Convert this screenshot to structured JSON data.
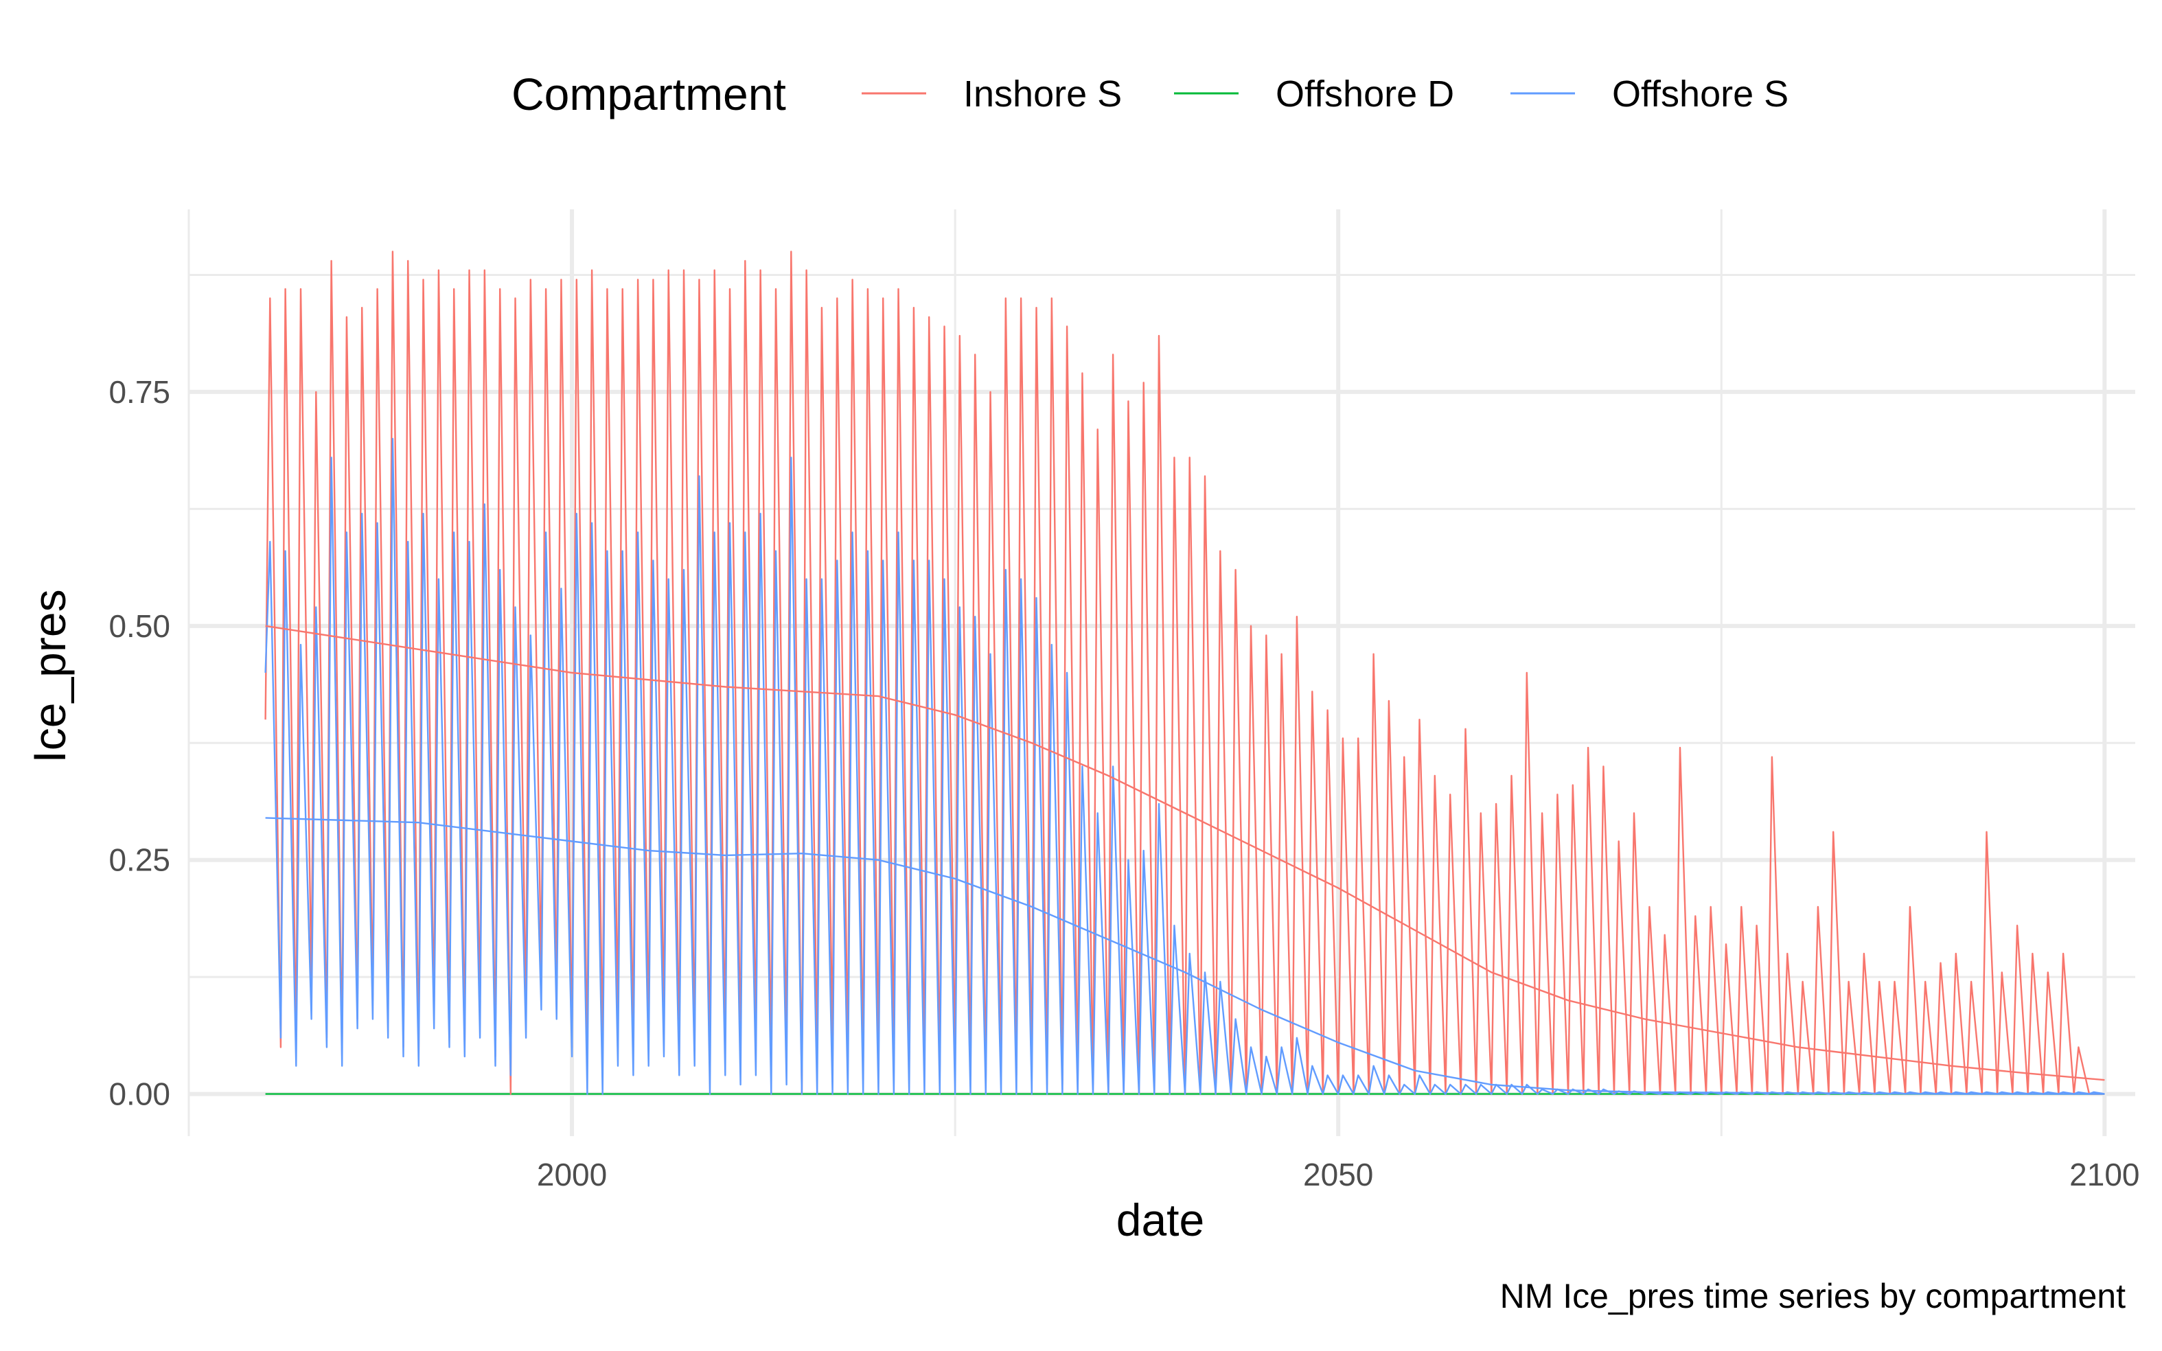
{
  "chart_data": {
    "type": "line",
    "title": "",
    "caption": "NM Ice_pres time series by compartment",
    "xlabel": "date",
    "ylabel": "Ice_pres",
    "xlim": [
      1975,
      2102
    ],
    "ylim": [
      -0.045,
      0.945
    ],
    "x_ticks": [
      2000,
      2050,
      2100
    ],
    "x_minor_ticks": [
      1975,
      2025,
      2075
    ],
    "y_ticks": [
      0.0,
      0.25,
      0.5,
      0.75
    ],
    "y_tick_labels": [
      "0.00",
      "0.25",
      "0.50",
      "0.75"
    ],
    "y_minor_ticks": [
      0.125,
      0.375,
      0.625,
      0.875
    ],
    "grid": true,
    "legend": {
      "title": "Compartment",
      "position": "top",
      "entries": [
        "Inshore S",
        "Offshore D",
        "Offshore S"
      ]
    },
    "x_start": 1980,
    "x_end": 2100,
    "series": [
      {
        "name": "Inshore S",
        "color": "#F8766D",
        "kind": "seasonal",
        "annual_peaks": [
          0.85,
          0.86,
          0.86,
          0.75,
          0.89,
          0.83,
          0.84,
          0.86,
          0.9,
          0.89,
          0.87,
          0.88,
          0.86,
          0.88,
          0.88,
          0.86,
          0.85,
          0.87,
          0.86,
          0.87,
          0.87,
          0.88,
          0.86,
          0.86,
          0.87,
          0.87,
          0.88,
          0.88,
          0.87,
          0.88,
          0.86,
          0.89,
          0.88,
          0.86,
          0.9,
          0.88,
          0.84,
          0.85,
          0.87,
          0.86,
          0.85,
          0.86,
          0.84,
          0.83,
          0.82,
          0.81,
          0.79,
          0.75,
          0.85,
          0.85,
          0.84,
          0.85,
          0.82,
          0.77,
          0.71,
          0.79,
          0.74,
          0.76,
          0.81,
          0.68,
          0.68,
          0.66,
          0.58,
          0.56,
          0.5,
          0.49,
          0.47,
          0.51,
          0.43,
          0.41,
          0.38,
          0.38,
          0.47,
          0.42,
          0.36,
          0.4,
          0.34,
          0.32,
          0.39,
          0.3,
          0.31,
          0.34,
          0.45,
          0.3,
          0.32,
          0.33,
          0.37,
          0.35,
          0.27,
          0.3,
          0.2,
          0.17,
          0.37,
          0.19,
          0.2,
          0.16,
          0.2,
          0.18,
          0.36,
          0.15,
          0.12,
          0.2,
          0.28,
          0.12,
          0.15,
          0.12,
          0.12,
          0.2,
          0.12,
          0.14,
          0.15,
          0.12,
          0.28,
          0.13,
          0.18,
          0.15,
          0.13,
          0.15,
          0.05,
          0.0
        ],
        "annual_troughs": [
          0.4,
          0.05,
          0.05,
          0.12,
          0.06,
          0.04,
          0.08,
          0.1,
          0.08,
          0.05,
          0.04,
          0.08,
          0.06,
          0.05,
          0.08,
          0.04,
          0.0,
          0.08,
          0.12,
          0.1,
          0.05,
          0.03,
          0.04,
          0.08,
          0.05,
          0.06,
          0.07,
          0.04,
          0.05,
          0.03,
          0.05,
          0.04,
          0.05,
          0.03,
          0.04,
          0.0,
          0.03,
          0.05,
          0.04,
          0.03,
          0.04,
          0.05,
          0.02,
          0.03,
          0.02,
          0.03,
          0.02,
          0.01,
          0.02,
          0.02,
          0.02,
          0.01,
          0.01,
          0.01,
          0.01,
          0.0,
          0.0,
          0.0,
          0.0,
          0.0,
          0.0,
          0.0,
          0.0,
          0.0,
          0.0,
          0.0,
          0.0,
          0.0,
          0.0,
          0.0,
          0.0,
          0.0,
          0.0,
          0.0,
          0.0,
          0.0,
          0.0,
          0.0,
          0.0,
          0.0,
          0.0,
          0.0,
          0.0,
          0.0,
          0.0,
          0.0,
          0.0,
          0.0,
          0.0,
          0.0,
          0.0,
          0.0,
          0.0,
          0.0,
          0.0,
          0.0,
          0.0,
          0.0,
          0.0,
          0.0,
          0.0,
          0.0,
          0.0,
          0.0,
          0.0,
          0.0,
          0.0,
          0.0,
          0.0,
          0.0,
          0.0,
          0.0,
          0.0,
          0.0,
          0.0,
          0.0,
          0.0,
          0.0,
          0.0,
          0.0
        ]
      },
      {
        "name": "Offshore D",
        "color": "#00BA38",
        "kind": "flat",
        "value": 0.0
      },
      {
        "name": "Offshore S",
        "color": "#619CFF",
        "kind": "seasonal",
        "annual_peaks": [
          0.59,
          0.58,
          0.48,
          0.52,
          0.68,
          0.6,
          0.62,
          0.61,
          0.7,
          0.59,
          0.62,
          0.55,
          0.6,
          0.59,
          0.63,
          0.56,
          0.52,
          0.49,
          0.6,
          0.54,
          0.62,
          0.61,
          0.58,
          0.58,
          0.6,
          0.57,
          0.55,
          0.56,
          0.66,
          0.6,
          0.61,
          0.6,
          0.62,
          0.58,
          0.68,
          0.55,
          0.55,
          0.57,
          0.6,
          0.58,
          0.57,
          0.6,
          0.57,
          0.57,
          0.55,
          0.52,
          0.51,
          0.47,
          0.56,
          0.55,
          0.53,
          0.48,
          0.45,
          0.35,
          0.3,
          0.35,
          0.25,
          0.26,
          0.31,
          0.18,
          0.15,
          0.13,
          0.12,
          0.08,
          0.05,
          0.04,
          0.05,
          0.06,
          0.03,
          0.02,
          0.02,
          0.02,
          0.03,
          0.02,
          0.01,
          0.02,
          0.01,
          0.01,
          0.01,
          0.01,
          0.01,
          0.01,
          0.01,
          0.005,
          0.005,
          0.005,
          0.005,
          0.005,
          0.003,
          0.003,
          0.002,
          0.002,
          0.002,
          0.002,
          0.002,
          0.002,
          0.002,
          0.002,
          0.002,
          0.002,
          0.002,
          0.002,
          0.002,
          0.002,
          0.002,
          0.002,
          0.002,
          0.002,
          0.002,
          0.002,
          0.002,
          0.002,
          0.002,
          0.002,
          0.002,
          0.002,
          0.002,
          0.002,
          0.002,
          0.002
        ],
        "annual_troughs": [
          0.45,
          0.06,
          0.03,
          0.08,
          0.05,
          0.03,
          0.07,
          0.08,
          0.06,
          0.04,
          0.03,
          0.07,
          0.05,
          0.04,
          0.06,
          0.03,
          0.02,
          0.06,
          0.09,
          0.08,
          0.04,
          0.0,
          0.0,
          0.03,
          0.02,
          0.03,
          0.04,
          0.02,
          0.03,
          0.0,
          0.02,
          0.01,
          0.02,
          0.0,
          0.01,
          0.0,
          0.0,
          0.0,
          0.0,
          0.0,
          0.0,
          0.0,
          0.0,
          0.0,
          0.0,
          0.0,
          0.0,
          0.0,
          0.0,
          0.0,
          0.0,
          0.0,
          0.0,
          0.0,
          0.0,
          0.0,
          0.0,
          0.0,
          0.0,
          0.0,
          0.0,
          0.0,
          0.0,
          0.0,
          0.0,
          0.0,
          0.0,
          0.0,
          0.0,
          0.0,
          0.0,
          0.0,
          0.0,
          0.0,
          0.0,
          0.0,
          0.0,
          0.0,
          0.0,
          0.0,
          0.0,
          0.0,
          0.0,
          0.0,
          0.0,
          0.0,
          0.0,
          0.0,
          0.0,
          0.0,
          0.0,
          0.0,
          0.0,
          0.0,
          0.0,
          0.0,
          0.0,
          0.0,
          0.0,
          0.0,
          0.0,
          0.0,
          0.0,
          0.0,
          0.0,
          0.0,
          0.0,
          0.0,
          0.0,
          0.0,
          0.0,
          0.0,
          0.0,
          0.0,
          0.0,
          0.0,
          0.0,
          0.0,
          0.0,
          0.0
        ]
      }
    ],
    "trend_lines": [
      {
        "series": "Inshore S",
        "color": "#F8766D",
        "x": [
          1980,
          1990,
          2000,
          2010,
          2020,
          2025,
          2030,
          2035,
          2040,
          2045,
          2050,
          2055,
          2060,
          2065,
          2070,
          2075,
          2080,
          2085,
          2090,
          2095,
          2100
        ],
        "y": [
          0.5,
          0.475,
          0.45,
          0.435,
          0.425,
          0.405,
          0.375,
          0.34,
          0.3,
          0.26,
          0.22,
          0.175,
          0.13,
          0.1,
          0.08,
          0.065,
          0.05,
          0.04,
          0.03,
          0.022,
          0.015
        ]
      },
      {
        "series": "Offshore S",
        "color": "#619CFF",
        "x": [
          1980,
          1990,
          2000,
          2005,
          2010,
          2015,
          2020,
          2025,
          2030,
          2035,
          2040,
          2045,
          2050,
          2055,
          2060,
          2065,
          2070,
          2080,
          2090,
          2100
        ],
        "y": [
          0.295,
          0.29,
          0.27,
          0.26,
          0.255,
          0.257,
          0.25,
          0.23,
          0.2,
          0.165,
          0.13,
          0.09,
          0.055,
          0.025,
          0.01,
          0.004,
          0.002,
          0.001,
          0.0,
          0.0
        ]
      }
    ]
  }
}
